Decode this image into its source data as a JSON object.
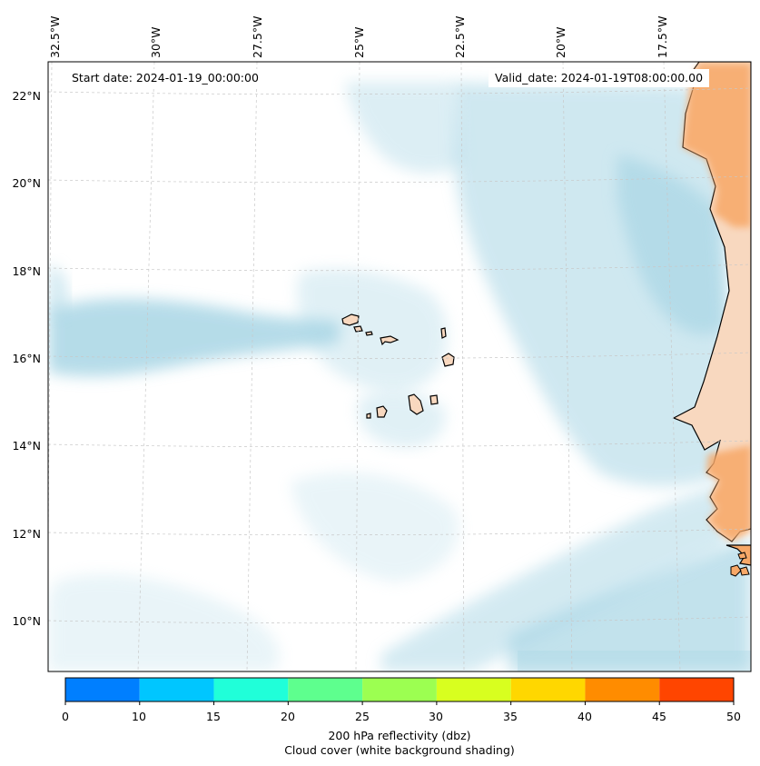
{
  "map": {
    "start_date": "Start date: 2024-01-19_00:00:00",
    "valid_date": "Valid_date: 2024-01-19T08:00:00.00",
    "lon_labels": [
      "32.5°W",
      "30°W",
      "27.5°W",
      "25°W",
      "22.5°W",
      "20°W",
      "17.5°W"
    ],
    "lat_labels": [
      "22°N",
      "20°N",
      "18°N",
      "16°N",
      "14°N",
      "12°N",
      "10°N"
    ],
    "colors": {
      "cloud": "#a9d6e5",
      "land": "#f8d8bf",
      "reflectivity_land": "#f7a868",
      "coast": "#000000",
      "grid": "#c8c8c8"
    }
  },
  "colorbar": {
    "ticks": [
      "0",
      "10",
      "15",
      "20",
      "25",
      "30",
      "35",
      "40",
      "45",
      "50"
    ],
    "colors": [
      "#007fff",
      "#00c6ff",
      "#20ffd9",
      "#5eff8e",
      "#9cff51",
      "#d8ff1f",
      "#ffd700",
      "#ff8c00",
      "#ff4500"
    ],
    "label": "200 hPa reflectivity (dbz)",
    "sublabel": "Cloud cover (white background shading)"
  }
}
